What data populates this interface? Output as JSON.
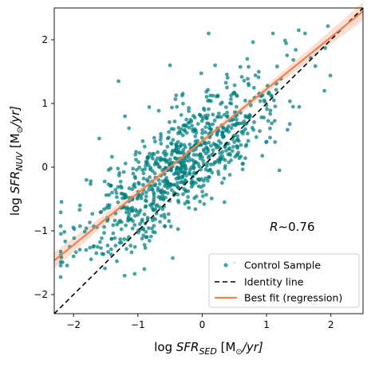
{
  "chart_data": {
    "type": "scatter",
    "title": "",
    "xlabel": "log SFR_SED [M⊙/yr]",
    "ylabel": "log SFR_NUV [M⊙/yr]",
    "xlabel_parts": {
      "prefix": "log ",
      "base": "SFR",
      "sub": "SED",
      "suffix": " [M",
      "unit_sub": "⊙",
      "unit_tail": "/yr]"
    },
    "ylabel_parts": {
      "prefix": "log ",
      "base": "SFR",
      "sub": "NUV",
      "suffix": " [M",
      "unit_sub": "⊙",
      "unit_tail": "/yr]"
    },
    "xlim": [
      -2.3,
      2.5
    ],
    "ylim": [
      -2.3,
      2.5
    ],
    "xticks": [
      -2,
      -1,
      0,
      1,
      2
    ],
    "yticks": [
      -2,
      -1,
      0,
      1,
      2
    ],
    "xtick_labels": [
      "−2",
      "−1",
      "0",
      "1",
      "2"
    ],
    "ytick_labels": [
      "−2",
      "−1",
      "0",
      "1",
      "2"
    ],
    "grid": false,
    "legend_position": "bottom-right",
    "annotation": {
      "text": "R∼0.76",
      "x": 1.4,
      "y": -1.0
    },
    "series": [
      {
        "name": "Control Sample",
        "kind": "scatter",
        "color": "#008080",
        "n_points": 900,
        "x_range": [
          -2.2,
          2.2
        ],
        "relation": {
          "slope": 0.76,
          "intercept": 0.3,
          "scatter_dex": 0.42
        },
        "sample_points": [
          {
            "x": -2.0,
            "y": -1.4
          },
          {
            "x": -1.9,
            "y": -0.6
          },
          {
            "x": -1.8,
            "y": -0.2
          },
          {
            "x": -1.6,
            "y": 0.45
          },
          {
            "x": -1.3,
            "y": 1.35
          },
          {
            "x": -1.2,
            "y": 0.8
          },
          {
            "x": -0.9,
            "y": -1.6
          },
          {
            "x": -0.5,
            "y": 1.6
          },
          {
            "x": 0.1,
            "y": 2.1
          },
          {
            "x": 0.2,
            "y": 1.6
          },
          {
            "x": 0.5,
            "y": -1.5
          },
          {
            "x": 0.7,
            "y": 1.7
          },
          {
            "x": 1.0,
            "y": 0.4
          },
          {
            "x": 1.1,
            "y": 2.1
          },
          {
            "x": 1.2,
            "y": -0.05
          },
          {
            "x": 1.5,
            "y": 2.15
          },
          {
            "x": 1.6,
            "y": 2.1
          },
          {
            "x": 1.9,
            "y": 1.2
          }
        ]
      },
      {
        "name": "Identity line",
        "kind": "line",
        "style": "dashed",
        "color": "#000000",
        "x": [
          -2.3,
          2.5
        ],
        "y": [
          -2.3,
          2.5
        ]
      },
      {
        "name": "Best fit (regression)",
        "kind": "line",
        "color": "#f08050",
        "band_color": "#f9c2ad",
        "slope": 0.815,
        "intercept": 0.41,
        "x": [
          -2.3,
          2.5
        ],
        "y": [
          -1.465,
          2.448
        ]
      }
    ]
  }
}
